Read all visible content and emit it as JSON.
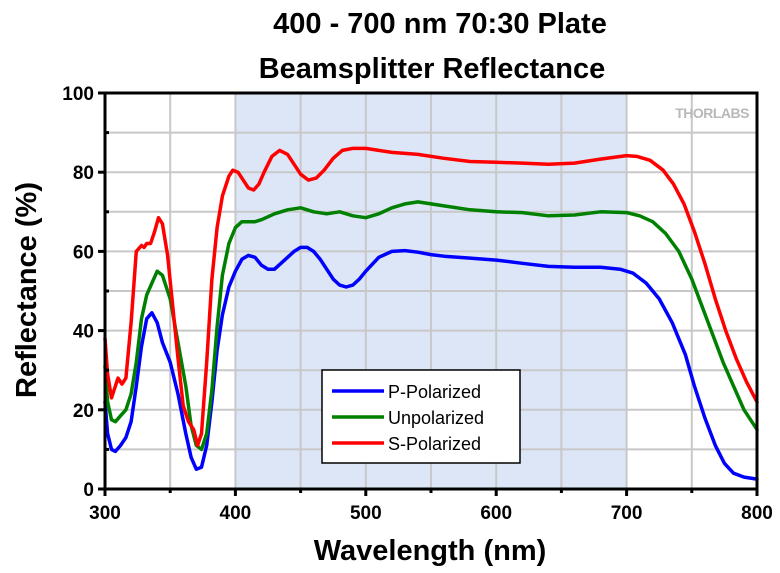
{
  "chart_data": {
    "type": "line",
    "title": [
      "400 - 700 nm 70:30 Plate",
      "Beamsplitter Reflectance"
    ],
    "xlabel": "Wavelength (nm)",
    "ylabel": "Reflectance (%)",
    "xlim": [
      300,
      800
    ],
    "ylim": [
      0,
      100
    ],
    "x_ticks": [
      300,
      400,
      500,
      600,
      700,
      800
    ],
    "y_ticks": [
      0,
      20,
      40,
      60,
      80,
      100
    ],
    "x_minor_step": 50,
    "y_minor_step": 10,
    "grid": true,
    "highlight_band": {
      "from": 400,
      "to": 700,
      "color": "#dde6f7"
    },
    "watermark": "THORLABS",
    "legend": {
      "placement": "bottom-center"
    },
    "series": [
      {
        "name": "P-Polarized",
        "color": "#0000ff",
        "points": [
          [
            300,
            22
          ],
          [
            302,
            14
          ],
          [
            305,
            10
          ],
          [
            308,
            9.5
          ],
          [
            312,
            11
          ],
          [
            316,
            13
          ],
          [
            320,
            17
          ],
          [
            324,
            26
          ],
          [
            328,
            36
          ],
          [
            332,
            43
          ],
          [
            336,
            44.5
          ],
          [
            340,
            42
          ],
          [
            344,
            37
          ],
          [
            350,
            32
          ],
          [
            356,
            24
          ],
          [
            362,
            14
          ],
          [
            366,
            8
          ],
          [
            370,
            5
          ],
          [
            374,
            5.5
          ],
          [
            378,
            11
          ],
          [
            382,
            22
          ],
          [
            386,
            35
          ],
          [
            390,
            44
          ],
          [
            395,
            51
          ],
          [
            400,
            55
          ],
          [
            405,
            58
          ],
          [
            410,
            59
          ],
          [
            415,
            58.5
          ],
          [
            420,
            56.5
          ],
          [
            425,
            55.5
          ],
          [
            430,
            55.5
          ],
          [
            435,
            57
          ],
          [
            440,
            58.5
          ],
          [
            445,
            60
          ],
          [
            450,
            61
          ],
          [
            455,
            61
          ],
          [
            460,
            60
          ],
          [
            465,
            58
          ],
          [
            470,
            55.5
          ],
          [
            475,
            53
          ],
          [
            480,
            51.5
          ],
          [
            485,
            51
          ],
          [
            490,
            51.5
          ],
          [
            495,
            53
          ],
          [
            500,
            55
          ],
          [
            510,
            58.5
          ],
          [
            520,
            60
          ],
          [
            530,
            60.2
          ],
          [
            540,
            59.8
          ],
          [
            550,
            59.2
          ],
          [
            560,
            58.8
          ],
          [
            580,
            58.3
          ],
          [
            600,
            57.8
          ],
          [
            620,
            57
          ],
          [
            640,
            56.2
          ],
          [
            660,
            56
          ],
          [
            680,
            56
          ],
          [
            695,
            55.5
          ],
          [
            705,
            54.5
          ],
          [
            715,
            52
          ],
          [
            725,
            48
          ],
          [
            735,
            42
          ],
          [
            745,
            34
          ],
          [
            752,
            26
          ],
          [
            760,
            18
          ],
          [
            768,
            11
          ],
          [
            775,
            6.5
          ],
          [
            782,
            4
          ],
          [
            790,
            3
          ],
          [
            800,
            2.5
          ]
        ]
      },
      {
        "name": "Unpolarized",
        "color": "#008000",
        "points": [
          [
            300,
            31
          ],
          [
            302,
            22
          ],
          [
            305,
            17.5
          ],
          [
            308,
            17
          ],
          [
            312,
            18.5
          ],
          [
            316,
            20
          ],
          [
            320,
            24
          ],
          [
            324,
            32
          ],
          [
            328,
            43
          ],
          [
            332,
            49
          ],
          [
            336,
            52
          ],
          [
            340,
            55
          ],
          [
            344,
            54
          ],
          [
            350,
            48
          ],
          [
            356,
            37
          ],
          [
            362,
            26
          ],
          [
            366,
            16
          ],
          [
            370,
            11
          ],
          [
            374,
            10
          ],
          [
            378,
            14
          ],
          [
            382,
            25
          ],
          [
            386,
            41
          ],
          [
            390,
            54
          ],
          [
            395,
            62
          ],
          [
            400,
            66
          ],
          [
            405,
            67.5
          ],
          [
            410,
            67.5
          ],
          [
            415,
            67.5
          ],
          [
            420,
            68
          ],
          [
            430,
            69.5
          ],
          [
            440,
            70.5
          ],
          [
            450,
            71
          ],
          [
            460,
            70
          ],
          [
            470,
            69.5
          ],
          [
            480,
            70
          ],
          [
            490,
            69
          ],
          [
            500,
            68.5
          ],
          [
            510,
            69.5
          ],
          [
            520,
            71
          ],
          [
            530,
            72
          ],
          [
            540,
            72.5
          ],
          [
            550,
            72
          ],
          [
            560,
            71.5
          ],
          [
            580,
            70.5
          ],
          [
            600,
            70
          ],
          [
            620,
            69.8
          ],
          [
            640,
            69
          ],
          [
            660,
            69.2
          ],
          [
            680,
            70
          ],
          [
            700,
            69.8
          ],
          [
            710,
            69
          ],
          [
            720,
            67.5
          ],
          [
            730,
            64.5
          ],
          [
            740,
            60
          ],
          [
            750,
            53
          ],
          [
            758,
            46
          ],
          [
            766,
            39
          ],
          [
            774,
            32
          ],
          [
            782,
            26
          ],
          [
            790,
            20
          ],
          [
            800,
            15
          ]
        ]
      },
      {
        "name": "S-Polarized",
        "color": "#ff0000",
        "points": [
          [
            300,
            38
          ],
          [
            302,
            29
          ],
          [
            305,
            23
          ],
          [
            308,
            26
          ],
          [
            310,
            28
          ],
          [
            313,
            26.5
          ],
          [
            316,
            28
          ],
          [
            320,
            42
          ],
          [
            324,
            60
          ],
          [
            328,
            61.5
          ],
          [
            330,
            61
          ],
          [
            332,
            62
          ],
          [
            335,
            62
          ],
          [
            338,
            65
          ],
          [
            341,
            68.5
          ],
          [
            344,
            67
          ],
          [
            348,
            59
          ],
          [
            352,
            46
          ],
          [
            356,
            33
          ],
          [
            360,
            21
          ],
          [
            364,
            17
          ],
          [
            368,
            15
          ],
          [
            371,
            11
          ],
          [
            374,
            14
          ],
          [
            378,
            32
          ],
          [
            382,
            53
          ],
          [
            386,
            66
          ],
          [
            390,
            74
          ],
          [
            395,
            79
          ],
          [
            398,
            80.5
          ],
          [
            402,
            80
          ],
          [
            406,
            78
          ],
          [
            410,
            76
          ],
          [
            414,
            75.5
          ],
          [
            418,
            77
          ],
          [
            422,
            80
          ],
          [
            428,
            84
          ],
          [
            434,
            85.5
          ],
          [
            440,
            84.5
          ],
          [
            445,
            82
          ],
          [
            450,
            79.5
          ],
          [
            456,
            78
          ],
          [
            462,
            78.5
          ],
          [
            468,
            80.5
          ],
          [
            475,
            83.5
          ],
          [
            482,
            85.5
          ],
          [
            490,
            86
          ],
          [
            500,
            86
          ],
          [
            510,
            85.5
          ],
          [
            520,
            85
          ],
          [
            540,
            84.5
          ],
          [
            560,
            83.5
          ],
          [
            580,
            82.7
          ],
          [
            600,
            82.5
          ],
          [
            620,
            82.3
          ],
          [
            640,
            82
          ],
          [
            660,
            82.3
          ],
          [
            680,
            83.3
          ],
          [
            700,
            84.2
          ],
          [
            708,
            84
          ],
          [
            718,
            83
          ],
          [
            728,
            80.5
          ],
          [
            736,
            77
          ],
          [
            744,
            72
          ],
          [
            752,
            65
          ],
          [
            760,
            57
          ],
          [
            768,
            48
          ],
          [
            776,
            40
          ],
          [
            784,
            33
          ],
          [
            792,
            27
          ],
          [
            800,
            22
          ]
        ]
      }
    ]
  }
}
